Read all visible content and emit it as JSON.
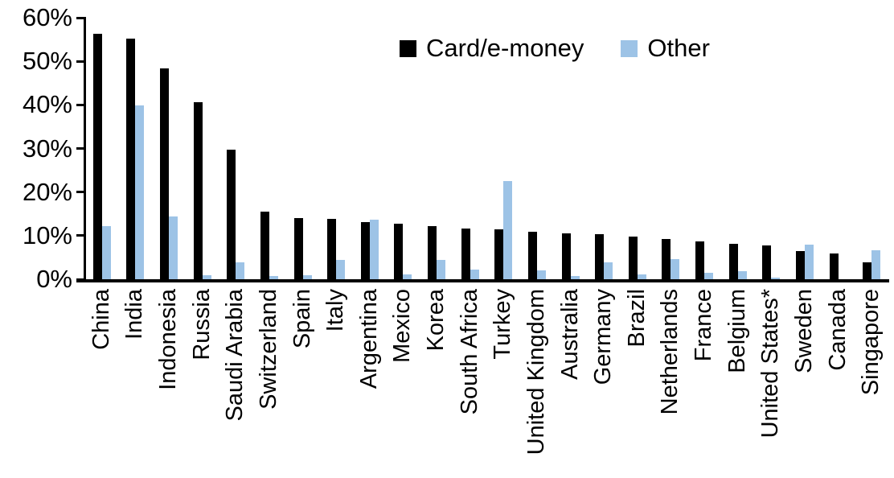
{
  "chart_data": {
    "type": "bar",
    "title": "",
    "xlabel": "",
    "ylabel": "",
    "ylim": [
      0,
      60
    ],
    "ytick_step": 10,
    "ytick_labels": [
      "0%",
      "10%",
      "20%",
      "30%",
      "40%",
      "50%",
      "60%"
    ],
    "grid": false,
    "legend_position": "top-center",
    "categories": [
      "China",
      "India",
      "Indonesia",
      "Russia",
      "Saudi Arabia",
      "Switzerland",
      "Spain",
      "Italy",
      "Argentina",
      "Mexico",
      "Korea",
      "South Africa",
      "Turkey",
      "United Kingdom",
      "Australia",
      "Germany",
      "Brazil",
      "Netherlands",
      "France",
      "Belgium",
      "United States*",
      "Sweden",
      "Canada",
      "Singapore"
    ],
    "series": [
      {
        "name": "Card/e-money",
        "color": "#000000",
        "values": [
          56.4,
          55.2,
          48.4,
          40.6,
          29.8,
          15.6,
          14.1,
          13.9,
          13.2,
          12.8,
          12.1,
          11.6,
          11.5,
          10.9,
          10.6,
          10.4,
          9.8,
          9.2,
          8.6,
          8.1,
          7.8,
          6.5,
          5.9,
          3.8
        ]
      },
      {
        "name": "Other",
        "color": "#9DC3E6",
        "values": [
          12.1,
          39.8,
          14.4,
          1.0,
          3.8,
          0.8,
          0.9,
          4.4,
          13.7,
          1.1,
          4.5,
          2.2,
          22.5,
          2.1,
          0.8,
          3.8,
          1.1,
          4.7,
          1.4,
          1.9,
          0.3,
          8.0,
          0.0,
          6.6
        ]
      }
    ]
  }
}
